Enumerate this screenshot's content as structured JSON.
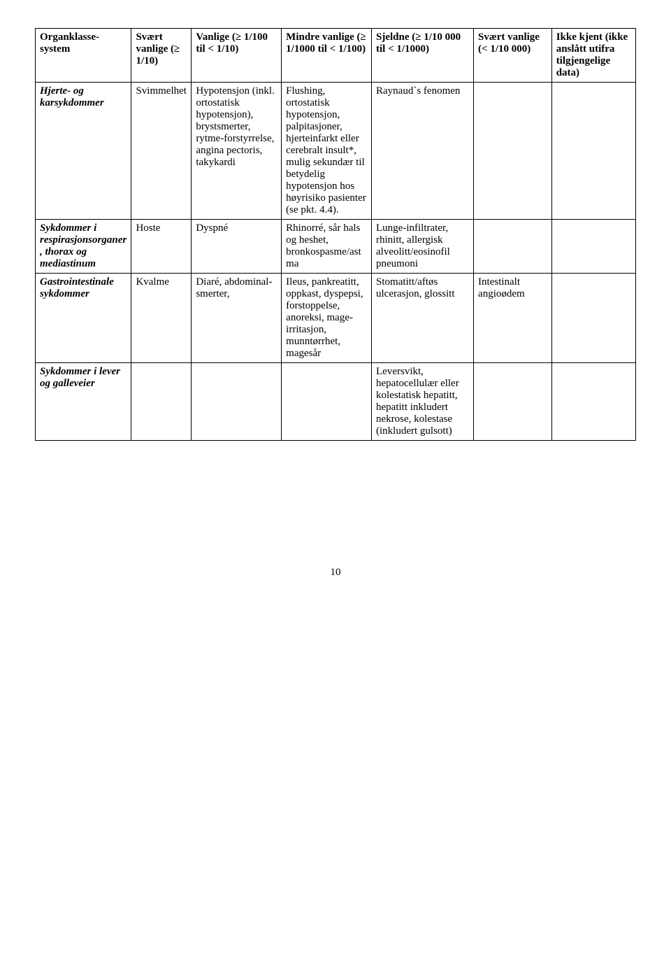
{
  "headers": [
    "Organklasse-system",
    "Svært vanlige (≥ 1/10)",
    "Vanlige (≥ 1/100 til < 1/10)",
    "Mindre vanlige (≥ 1/1000 til < 1/100)",
    "Sjeldne (≥ 1/10 000 til < 1/1000)",
    "Svært vanlige (< 1/10 000)",
    "Ikke kjent (ikke anslått utifra tilgjengelige data)"
  ],
  "rows": [
    {
      "label": "Hjerte- og karsykdommer",
      "c1": "Svimmelhet",
      "c2": "Hypotensjon (inkl. ortostatisk hypotensjon), brystsmerter, rytme-forstyrrelse, angina pectoris, takykardi",
      "c3": "Flushing, ortostatisk hypotensjon, palpitasjoner, hjerteinfarkt eller cerebralt insult*, mulig sekundær til betydelig hypotensjon hos høyrisiko pasienter (se pkt. 4.4).",
      "c4": "Raynaud`s fenomen",
      "c5": "",
      "c6": ""
    },
    {
      "label": "Sykdommer i respirasjonsorganer, thorax og mediastinum",
      "c1": "Hoste",
      "c2": "Dyspné",
      "c3": "Rhinorré, sår hals og heshet, bronkospasme/astma",
      "c4": "Lunge-infiltrater, rhinitt, allergisk alveolitt/eosinofil pneumoni",
      "c5": "",
      "c6": ""
    },
    {
      "label": "Gastrointestinale sykdommer",
      "c1": "Kvalme",
      "c2": "Diaré, abdominal-smerter,",
      "c3": "Ileus, pankreatitt, oppkast, dyspepsi, forstoppelse, anoreksi, mage-irritasjon, munntørrhet, magesår",
      "c4": "Stomatitt/aftøs ulcerasjon, glossitt",
      "c5": "Intestinalt angioødem",
      "c6": ""
    },
    {
      "label": "Sykdommer i lever og galleveier",
      "c1": "",
      "c2": "",
      "c3": "",
      "c4": "Leversvikt, hepatocellulær eller kolestatisk hepatitt, hepatitt inkludert nekrose, kolestase (inkludert gulsott)",
      "c5": "",
      "c6": ""
    }
  ],
  "pageNumber": "10"
}
